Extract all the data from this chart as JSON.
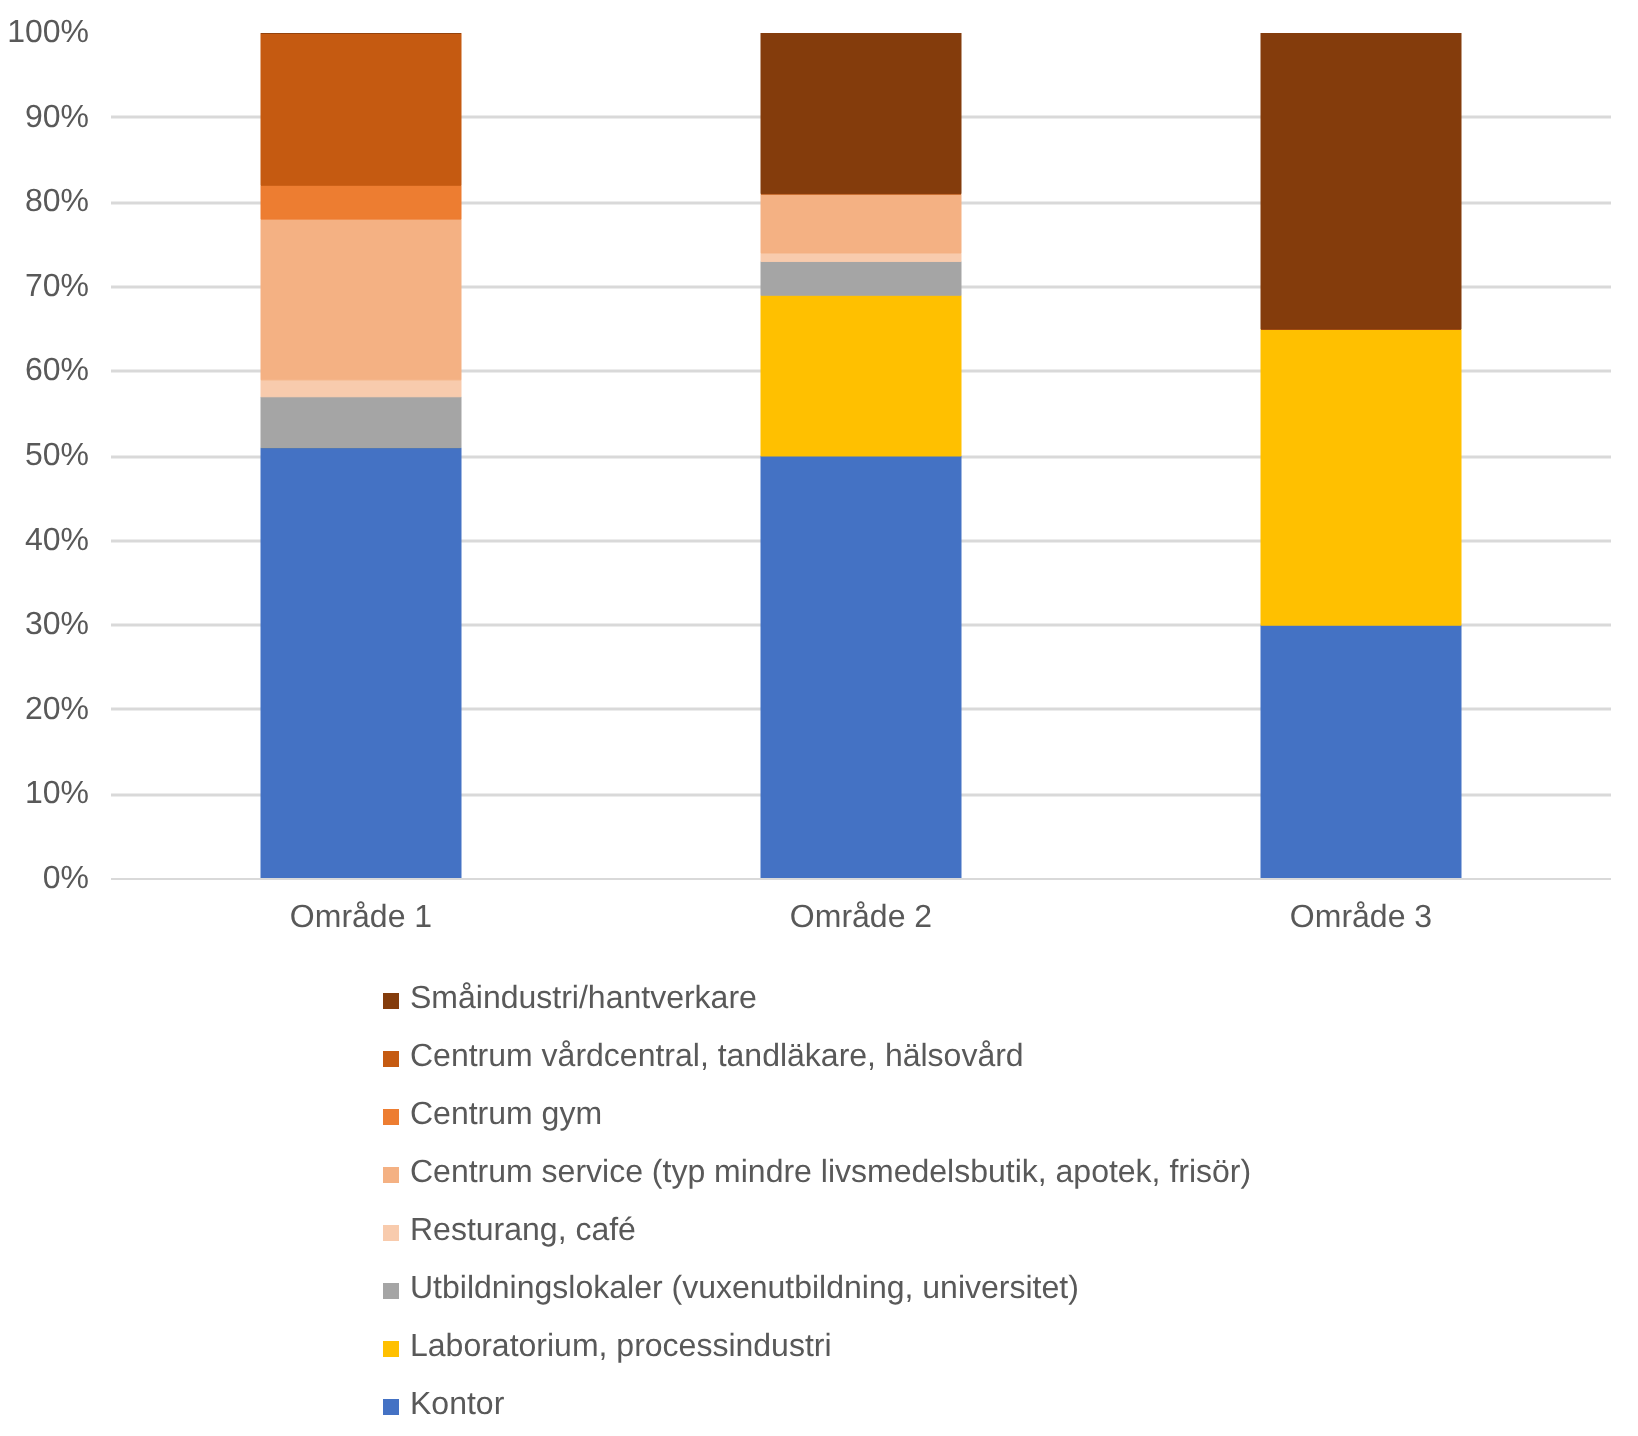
{
  "chart_data": {
    "type": "bar",
    "stacked": true,
    "categories": [
      "Område 1",
      "Område 2",
      "Område 3"
    ],
    "ylim": [
      0,
      100
    ],
    "yticks": [
      {
        "value": 0,
        "label": "0%"
      },
      {
        "value": 10,
        "label": "10%"
      },
      {
        "value": 20,
        "label": "20%"
      },
      {
        "value": 30,
        "label": "30%"
      },
      {
        "value": 40,
        "label": "40%"
      },
      {
        "value": 50,
        "label": "50%"
      },
      {
        "value": 60,
        "label": "60%"
      },
      {
        "value": 70,
        "label": "70%"
      },
      {
        "value": 80,
        "label": "80%"
      },
      {
        "value": 90,
        "label": "90%"
      },
      {
        "value": 100,
        "label": "100%"
      }
    ],
    "grid": "y",
    "legend": "bottom",
    "series": [
      {
        "name": "Kontor",
        "color": "#4472c4",
        "values": [
          51,
          50,
          30
        ]
      },
      {
        "name": "Laboratorium, processindustri",
        "color": "#ffc000",
        "values": [
          0,
          19,
          35
        ]
      },
      {
        "name": "Utbildningslokaler (vuxenutbildning, universitet)",
        "color": "#a5a5a5",
        "values": [
          6,
          4,
          0
        ]
      },
      {
        "name": "Resturang, café",
        "color": "#f8cbad",
        "values": [
          2,
          1,
          0
        ]
      },
      {
        "name": "Centrum service (typ mindre livsmedelsbutik, apotek, frisör)",
        "color": "#f4b183",
        "values": [
          19,
          7,
          0
        ]
      },
      {
        "name": "Centrum gym",
        "color": "#ed7d31",
        "values": [
          4,
          0,
          0
        ]
      },
      {
        "name": "Centrum vårdcentral, tandläkare, hälsovård",
        "color": "#c55a11",
        "values": [
          18,
          0,
          0
        ]
      },
      {
        "name": "Småindustri/hantverkare",
        "color": "#843c0c",
        "values": [
          0,
          19,
          35
        ]
      }
    ]
  }
}
